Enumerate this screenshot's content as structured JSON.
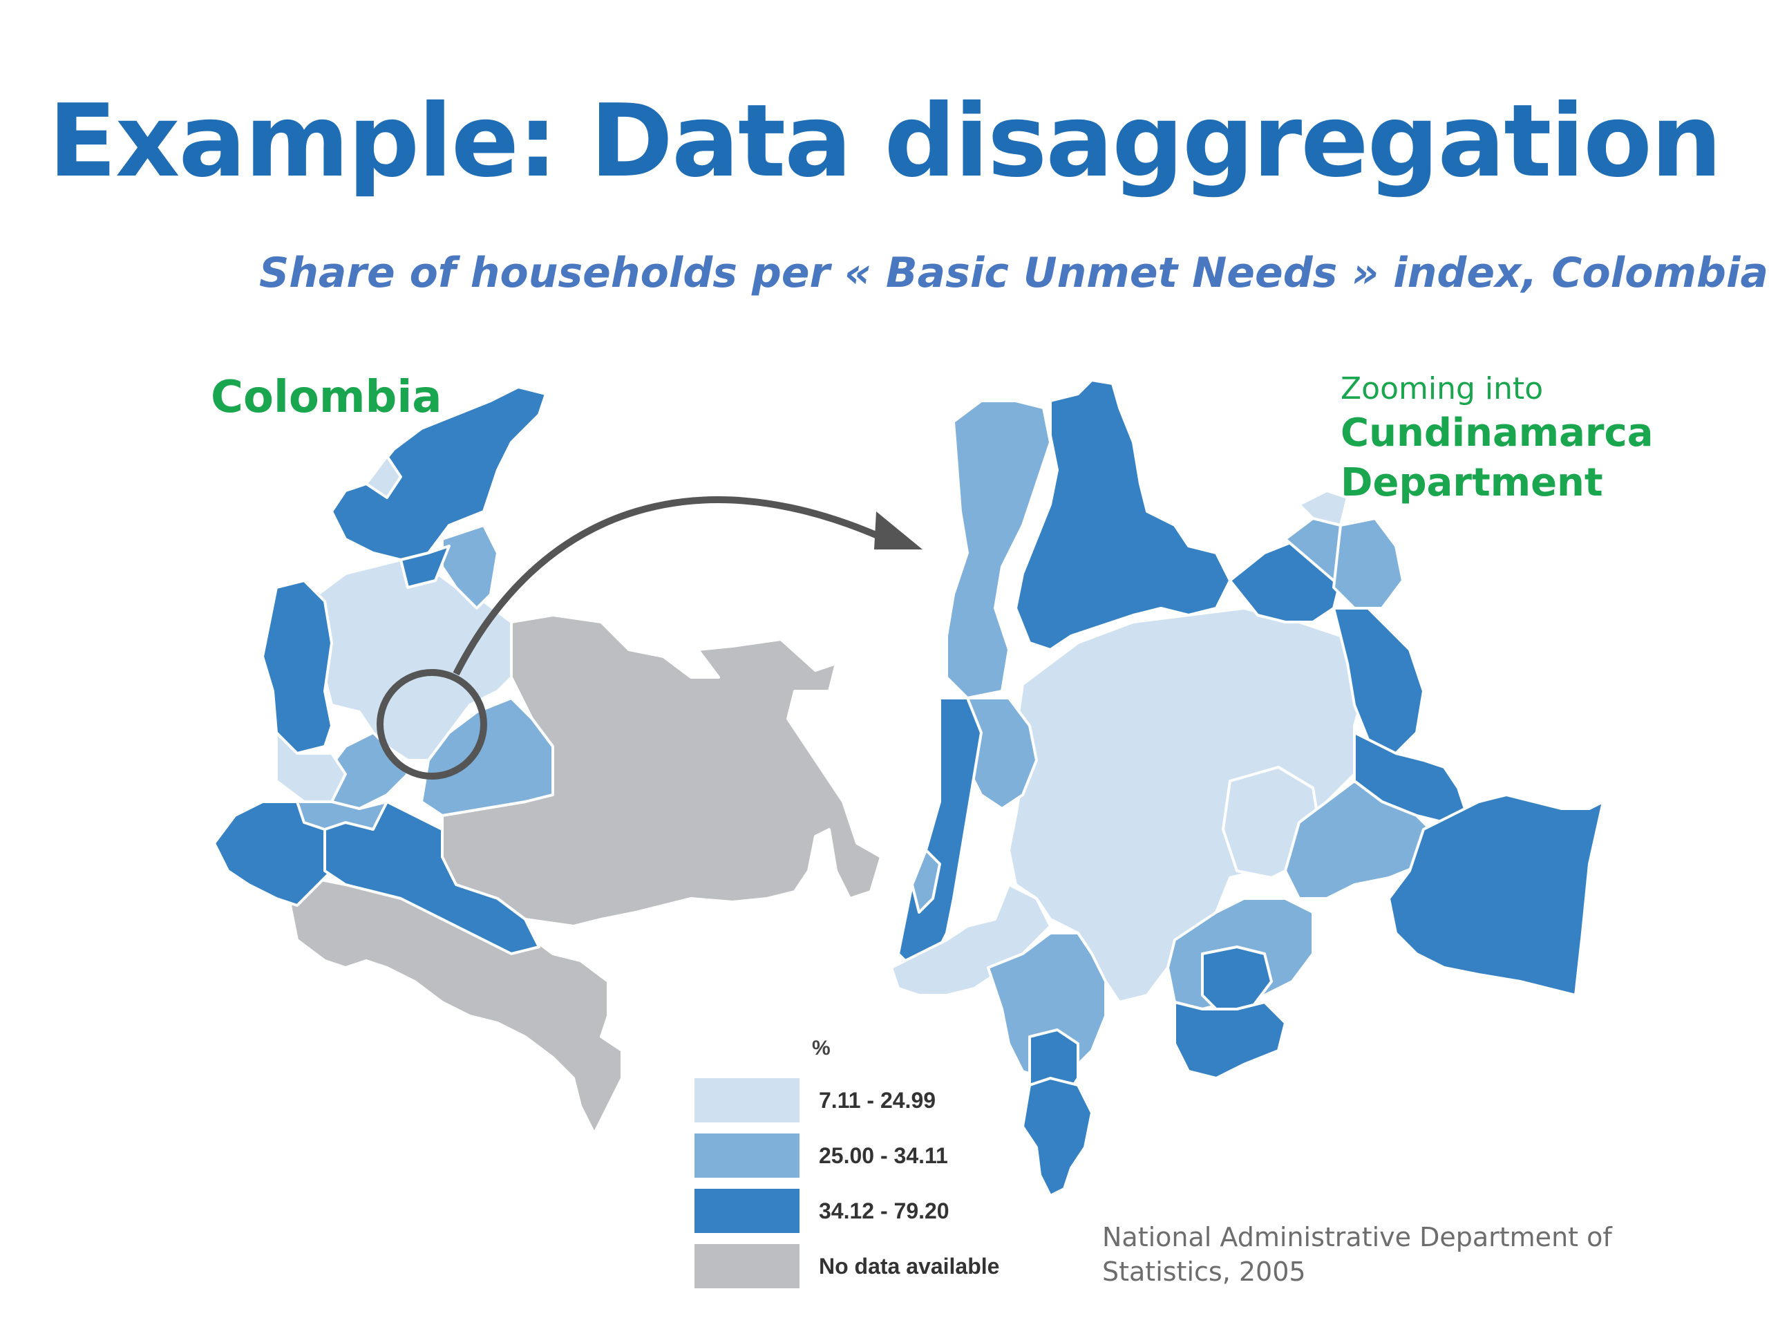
{
  "title": "Example: Data disaggregation",
  "subtitle": "Share of households per « Basic Unmet Needs » index, Colombia",
  "map_left_label": "Colombia",
  "map_right_label": {
    "prefix": "Zooming into",
    "line1": "Cundinamarca",
    "line2": "Department"
  },
  "legend": {
    "unit": "%",
    "items": [
      {
        "label": "7.11 - 24.99",
        "color": "#cfe1f0"
      },
      {
        "label": "25.00 - 34.11",
        "color": "#7fb0da"
      },
      {
        "label": "34.12 - 79.20",
        "color": "#3581c4"
      },
      {
        "label": "No data available",
        "color": "#bdbec1"
      }
    ]
  },
  "source": "National Administrative Department of Statistics, 2005",
  "colors": {
    "title": "#1f6db5",
    "subtitle": "#4a78c0",
    "highlight_label": "#1aa64e",
    "arrow": "#555555",
    "source_text": "#6d6d6d"
  }
}
